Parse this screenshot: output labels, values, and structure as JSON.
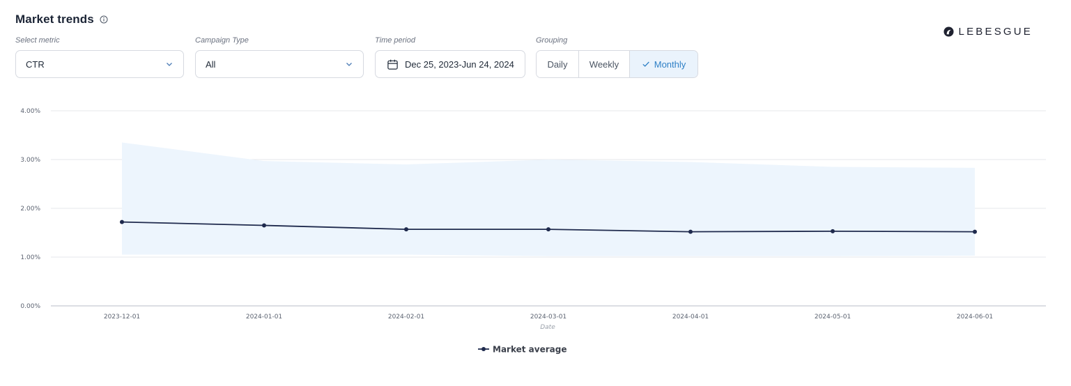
{
  "header": {
    "title": "Market trends"
  },
  "logo": {
    "text": "LEBESGUE"
  },
  "filters": {
    "metric": {
      "label": "Select metric",
      "value": "CTR"
    },
    "campaign_type": {
      "label": "Campaign Type",
      "value": "All"
    },
    "time_period": {
      "label": "Time period",
      "value": "Dec 25, 2023-Jun 24, 2024"
    },
    "grouping": {
      "label": "Grouping",
      "options": [
        "Daily",
        "Weekly",
        "Monthly"
      ],
      "selected": "Monthly"
    }
  },
  "colors": {
    "line": "#1f2a4d",
    "band": "#edf5fd",
    "accent": "#2f80c6",
    "grid": "#e5e7eb"
  },
  "chart_data": {
    "type": "line",
    "title": "",
    "xlabel": "Date",
    "ylabel": "",
    "x": [
      "2023-12-01",
      "2024-01-01",
      "2024-02-01",
      "2024-03-01",
      "2024-04-01",
      "2024-05-01",
      "2024-06-01"
    ],
    "series": [
      {
        "name": "Market average",
        "values": [
          1.72,
          1.65,
          1.57,
          1.57,
          1.52,
          1.53,
          1.52
        ]
      }
    ],
    "band": {
      "upper": [
        3.35,
        2.97,
        2.9,
        3.0,
        2.95,
        2.85,
        2.83
      ],
      "lower": [
        1.05,
        1.05,
        1.05,
        1.02,
        1.02,
        1.02,
        1.03
      ]
    },
    "ylim": [
      0,
      4
    ],
    "yticks": [
      "0.00%",
      "1.00%",
      "2.00%",
      "3.00%",
      "4.00%"
    ],
    "ytick_values": [
      0,
      1,
      2,
      3,
      4
    ],
    "grid": true,
    "legend": "bottom-center"
  }
}
